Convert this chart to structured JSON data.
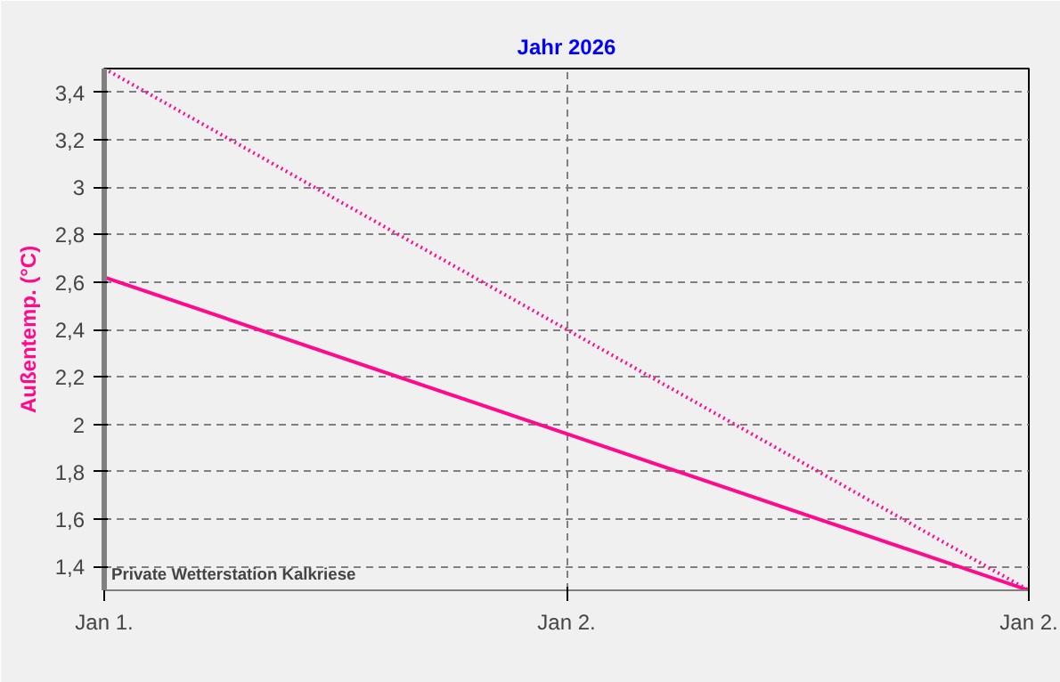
{
  "chart_data": {
    "type": "line",
    "title": "Jahr 2026",
    "ylabel": "Außentemp. (°C)",
    "categories": [
      "Jan 1.",
      "Jan 2.",
      "Jan 2."
    ],
    "ylim": [
      1.3,
      3.5
    ],
    "yticks": [
      {
        "value": 1.4,
        "label": "1,4"
      },
      {
        "value": 1.6,
        "label": "1,6"
      },
      {
        "value": 1.8,
        "label": "1,8"
      },
      {
        "value": 2,
        "label": "2"
      },
      {
        "value": 2.2,
        "label": "2,2"
      },
      {
        "value": 2.4,
        "label": "2,4"
      },
      {
        "value": 2.6,
        "label": "2,6"
      },
      {
        "value": 2.8,
        "label": "2,8"
      },
      {
        "value": 3,
        "label": "3"
      },
      {
        "value": 3.2,
        "label": "3,2"
      },
      {
        "value": 3.4,
        "label": "3,4"
      }
    ],
    "series": [
      {
        "color": "#ff0a8c",
        "values": [
          2.62,
          1.96,
          1.3
        ],
        "line_style": "solid"
      },
      {
        "color": "#ff0a8c",
        "values": [
          3.5,
          2.4,
          1.3
        ],
        "line_style": "dotted"
      }
    ],
    "grid": true,
    "annotations": [
      "Private Wetterstation Kalkriese"
    ]
  }
}
